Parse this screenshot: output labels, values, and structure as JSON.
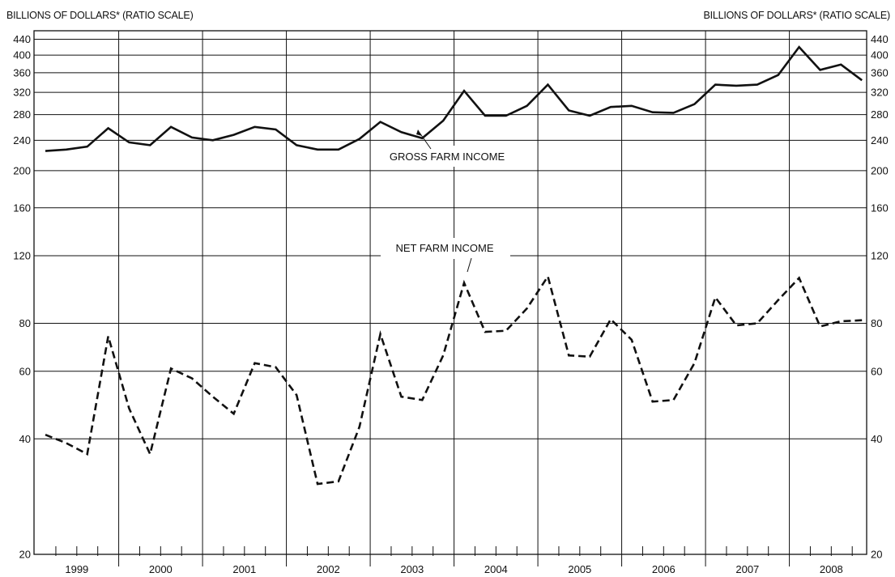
{
  "header": {
    "left_unit_label": "BILLIONS OF DOLLARS* (RATIO SCALE)",
    "right_unit_label": "BILLIONS OF DOLLARS* (RATIO SCALE)"
  },
  "chart_data": {
    "type": "line",
    "title": "",
    "xlabel": "",
    "ylabel": "BILLIONS OF DOLLARS* (RATIO SCALE)",
    "y_scale": "log",
    "ylim": [
      20,
      440
    ],
    "grid": true,
    "y_ticks": [
      20,
      40,
      60,
      80,
      120,
      160,
      200,
      240,
      280,
      320,
      360,
      400,
      440
    ],
    "years": [
      "1999",
      "2000",
      "2001",
      "2002",
      "2003",
      "2004",
      "2005",
      "2006",
      "2007",
      "2008"
    ],
    "x": [
      "1999 Q1",
      "1999 Q2",
      "1999 Q3",
      "1999 Q4",
      "2000 Q1",
      "2000 Q2",
      "2000 Q3",
      "2000 Q4",
      "2001 Q1",
      "2001 Q2",
      "2001 Q3",
      "2001 Q4",
      "2002 Q1",
      "2002 Q2",
      "2002 Q3",
      "2002 Q4",
      "2003 Q1",
      "2003 Q2",
      "2003 Q3",
      "2003 Q4",
      "2004 Q1",
      "2004 Q2",
      "2004 Q3",
      "2004 Q4",
      "2005 Q1",
      "2005 Q2",
      "2005 Q3",
      "2005 Q4",
      "2006 Q1",
      "2006 Q2",
      "2006 Q3",
      "2006 Q4",
      "2007 Q1",
      "2007 Q2",
      "2007 Q3",
      "2007 Q4",
      "2008 Q1",
      "2008 Q2",
      "2008 Q3",
      "2008 Q4"
    ],
    "series": [
      {
        "name": "GROSS FARM INCOME",
        "style": "solid",
        "values": [
          225,
          227,
          231,
          258,
          237,
          233,
          260,
          244,
          240,
          248,
          260,
          256,
          233,
          227,
          227,
          242,
          268,
          252,
          243,
          270,
          323,
          278,
          278,
          295,
          335,
          287,
          278,
          293,
          295,
          284,
          283,
          298,
          335,
          333,
          335,
          355,
          420,
          366,
          378,
          344
        ]
      },
      {
        "name": "NET FARM INCOME",
        "style": "dashed",
        "values": [
          41,
          39,
          36.5,
          74,
          48,
          36.5,
          61,
          57.5,
          51.5,
          46.5,
          63,
          61.5,
          52,
          30.5,
          31,
          43,
          75,
          51.5,
          50.5,
          66,
          102,
          76,
          76.5,
          87.5,
          106,
          66,
          65.5,
          82,
          72.5,
          50,
          50.5,
          63,
          93.5,
          79,
          80,
          92,
          105,
          78.5,
          81,
          81.5
        ]
      }
    ],
    "annotations": [
      {
        "text": "GROSS FARM INCOME",
        "points_to": "2004 Q1"
      },
      {
        "text": "NET FARM INCOME",
        "points_to": "2004 Q1"
      }
    ]
  }
}
